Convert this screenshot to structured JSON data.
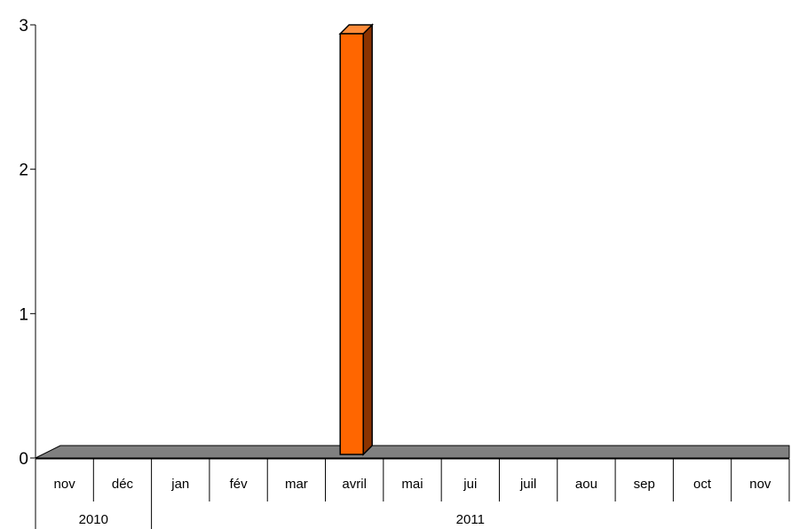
{
  "chart_data": {
    "type": "bar",
    "categories": [
      "nov",
      "déc",
      "jan",
      "fév",
      "mar",
      "avril",
      "mai",
      "jui",
      "juil",
      "aou",
      "sep",
      "oct",
      "nov"
    ],
    "values": [
      0,
      0,
      0,
      0,
      0,
      3,
      0,
      0,
      0,
      0,
      0,
      0,
      0
    ],
    "year_groups": [
      {
        "label": "2010",
        "span": 2
      },
      {
        "label": "2011",
        "span": 11
      }
    ],
    "yticks": [
      "0",
      "1",
      "2",
      "3"
    ],
    "ylim": [
      0,
      3
    ],
    "grid": false,
    "legend": "none",
    "style": "3d-column"
  },
  "colors": {
    "bar_front": "#ff6600",
    "bar_top": "#ff8c3a",
    "bar_side": "#8b3300",
    "floor": "#808080",
    "axis": "#000000"
  }
}
